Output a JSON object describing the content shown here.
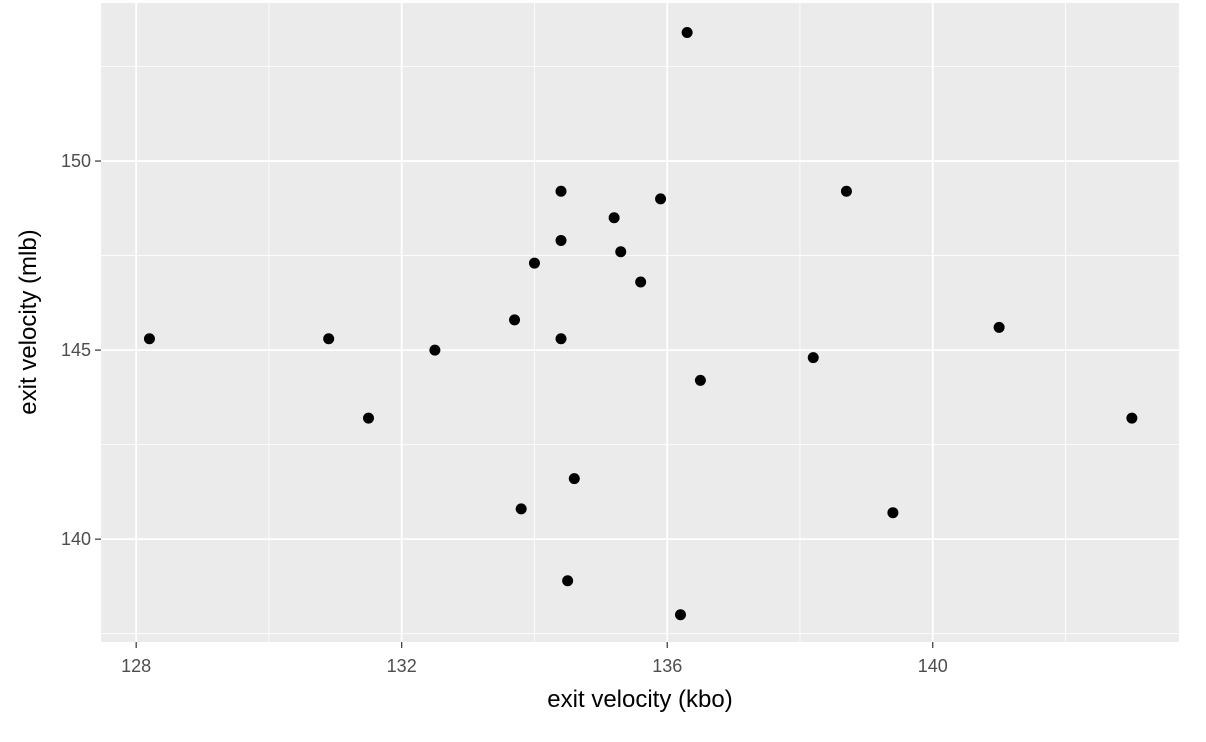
{
  "chart_data": {
    "type": "scatter",
    "x_label": "exit velocity (kbo)",
    "y_label": "exit velocity (mlb)",
    "x": [
      128.2,
      130.9,
      131.5,
      132.5,
      133.7,
      133.8,
      134.0,
      134.4,
      134.4,
      134.4,
      134.5,
      134.6,
      135.2,
      135.3,
      135.6,
      135.9,
      136.3,
      136.2,
      136.5,
      138.2,
      138.7,
      139.4,
      141.0,
      143.0
    ],
    "y": [
      145.3,
      145.3,
      143.2,
      145.0,
      145.8,
      140.8,
      147.3,
      149.2,
      147.9,
      145.3,
      138.9,
      141.6,
      148.5,
      147.6,
      146.8,
      149.0,
      153.4,
      138.0,
      144.2,
      144.8,
      149.2,
      140.7,
      145.6,
      143.2
    ],
    "color": "#000000",
    "xlim": [
      127.47,
      143.71
    ],
    "ylim": [
      137.28,
      154.18
    ],
    "xticks": [
      128,
      132,
      136,
      140
    ],
    "yticks": [
      140,
      145,
      150
    ],
    "x_minor_grid": [
      130,
      134,
      138,
      142
    ],
    "y_minor_grid": [
      137.5,
      142.5,
      147.5,
      152.5
    ],
    "grid": true,
    "panel_color": "#ebebeb"
  }
}
